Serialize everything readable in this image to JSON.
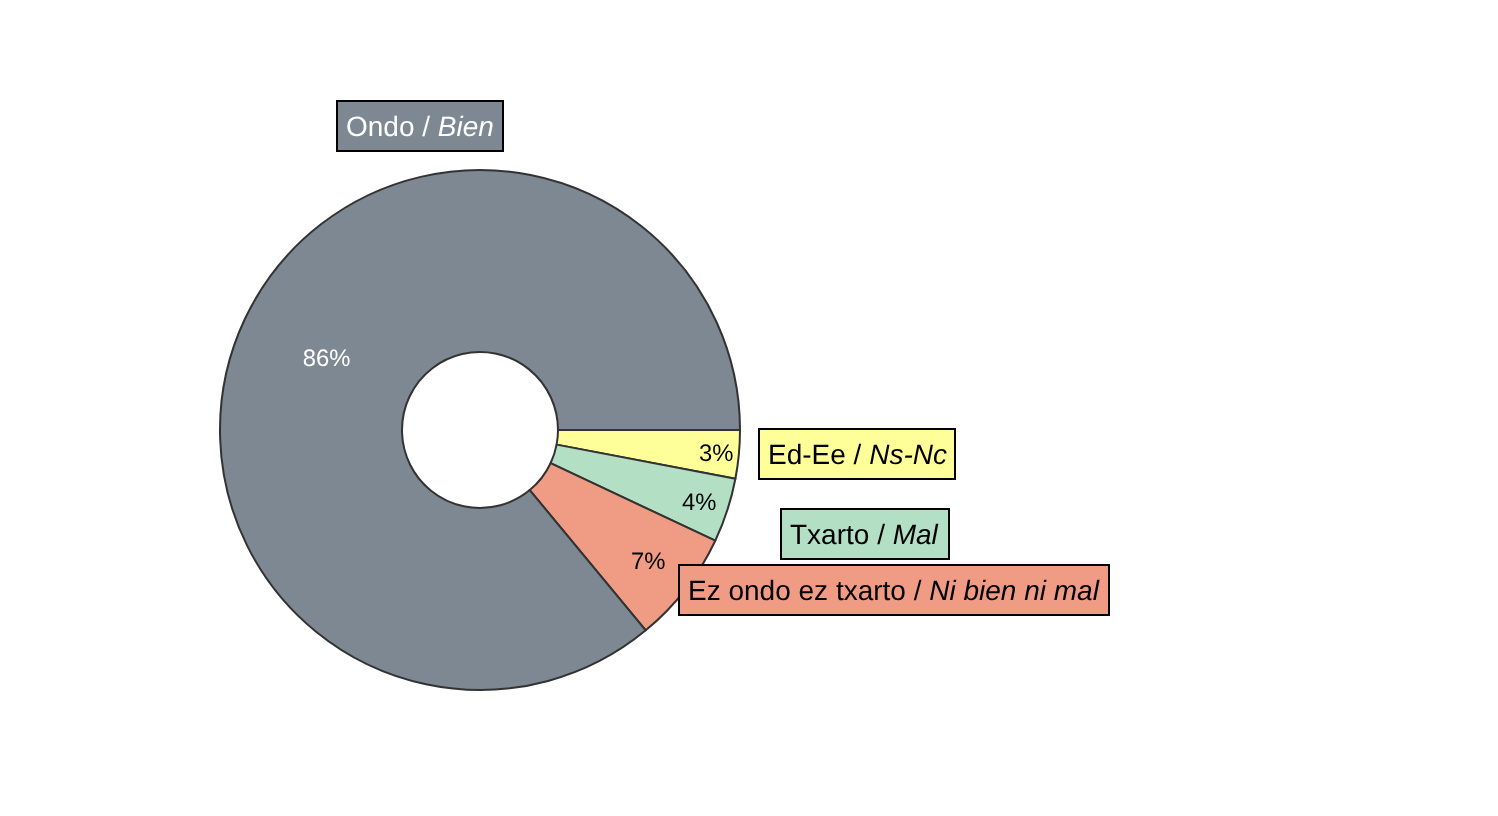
{
  "chart_data": {
    "type": "donut",
    "categories": [
      "Ed-Ee / Ns-Nc",
      "Txarto / Mal",
      "Ez ondo ez txarto / Ni bien ni mal",
      "Ondo / Bien"
    ],
    "values": [
      3,
      4,
      7,
      86
    ],
    "value_labels": [
      "3%",
      "4%",
      "7%",
      "86%"
    ],
    "colors": [
      "#ffff99",
      "#b3dfc4",
      "#f09c84",
      "#7d8893"
    ],
    "legend": false
  }
}
